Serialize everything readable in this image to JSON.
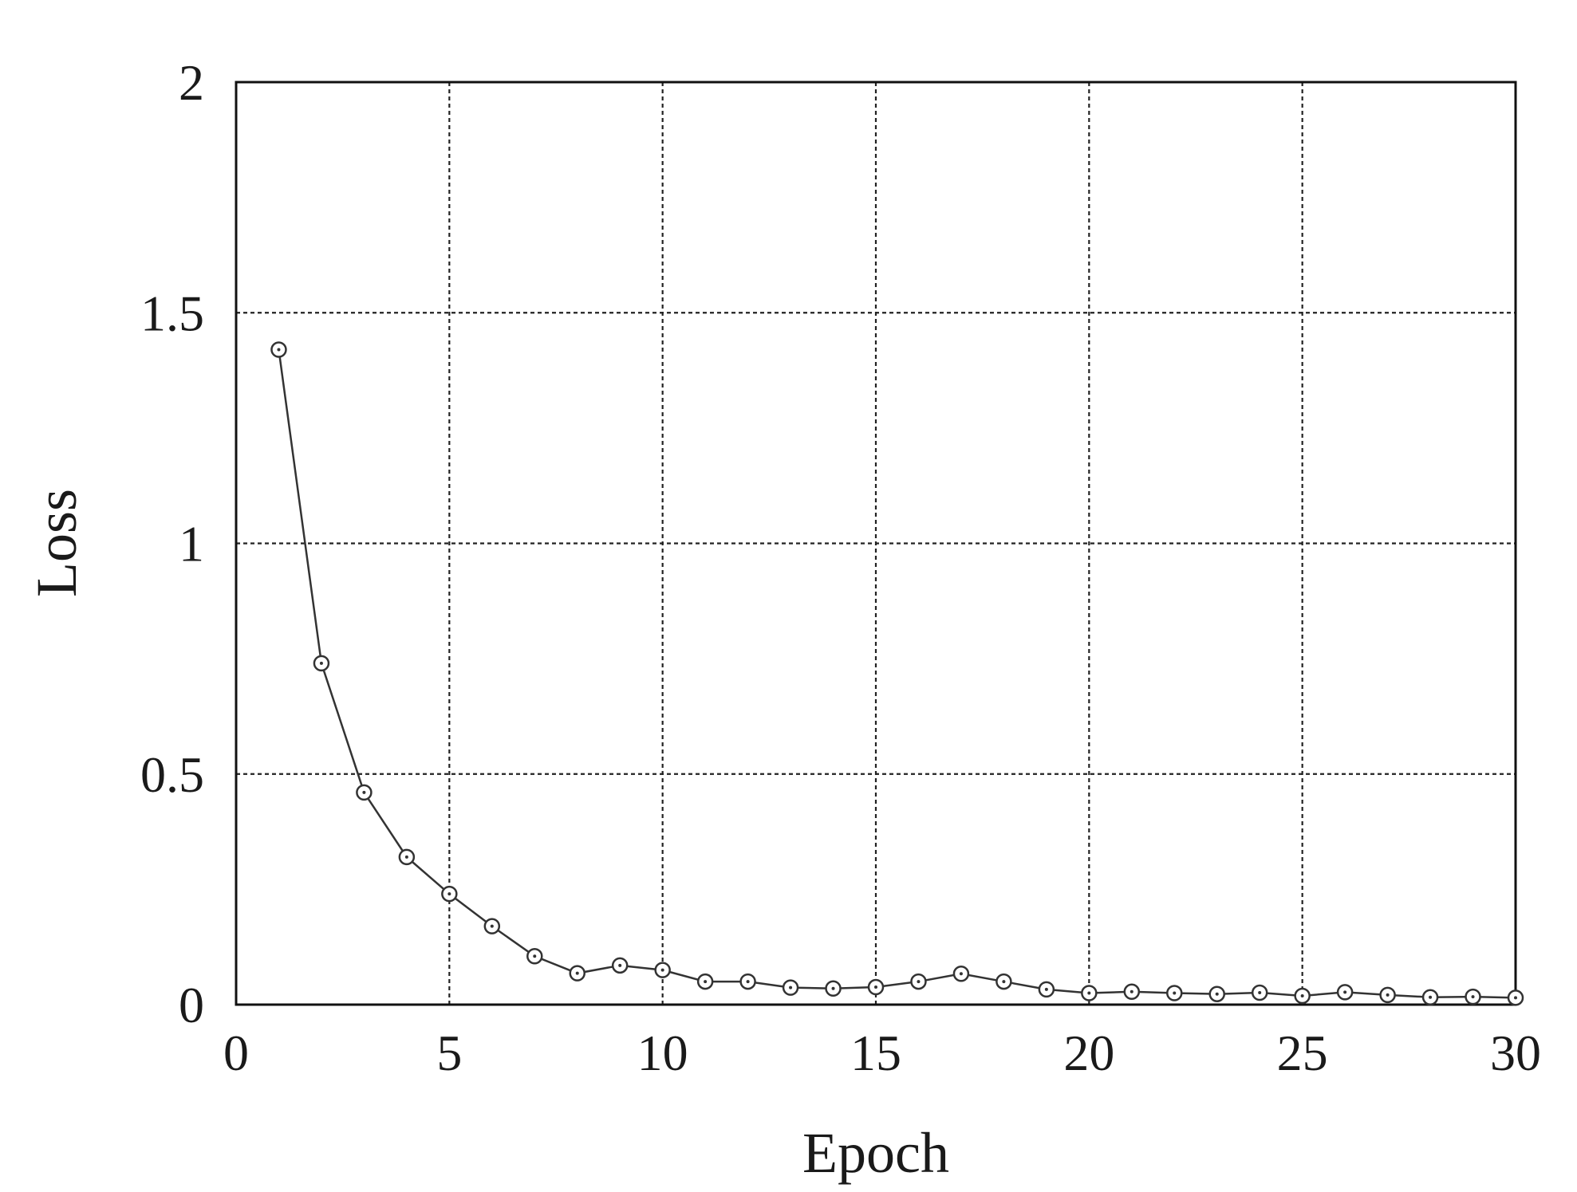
{
  "chart_data": {
    "type": "line",
    "title": "",
    "xlabel": "Epoch",
    "ylabel": "Loss",
    "xlim": [
      0,
      30
    ],
    "ylim": [
      0,
      2
    ],
    "x_ticks": [
      0,
      5,
      10,
      15,
      20,
      25,
      30
    ],
    "y_ticks": [
      0,
      0.5,
      1,
      1.5,
      2
    ],
    "x_tick_labels": [
      "0",
      "5",
      "10",
      "15",
      "20",
      "25",
      "30"
    ],
    "y_tick_labels": [
      "0",
      "0.5",
      "1",
      "1.5",
      "2"
    ],
    "grid": true,
    "marker": "open-circle",
    "series": [
      {
        "x": [
          1,
          2,
          3,
          4,
          5,
          6,
          7,
          8,
          9,
          10,
          11,
          12,
          13,
          14,
          15,
          16,
          17,
          18,
          19,
          20,
          21,
          22,
          23,
          24,
          25,
          26,
          27,
          28,
          29,
          30
        ],
        "values": [
          1.42,
          0.74,
          0.46,
          0.32,
          0.24,
          0.17,
          0.105,
          0.068,
          0.085,
          0.075,
          0.05,
          0.05,
          0.037,
          0.035,
          0.038,
          0.05,
          0.067,
          0.05,
          0.033,
          0.025,
          0.028,
          0.025,
          0.023,
          0.026,
          0.019,
          0.027,
          0.021,
          0.016,
          0.017,
          0.015
        ]
      }
    ],
    "colors": {
      "line": "#333333",
      "grid": "#222222",
      "frame": "#111111"
    }
  }
}
